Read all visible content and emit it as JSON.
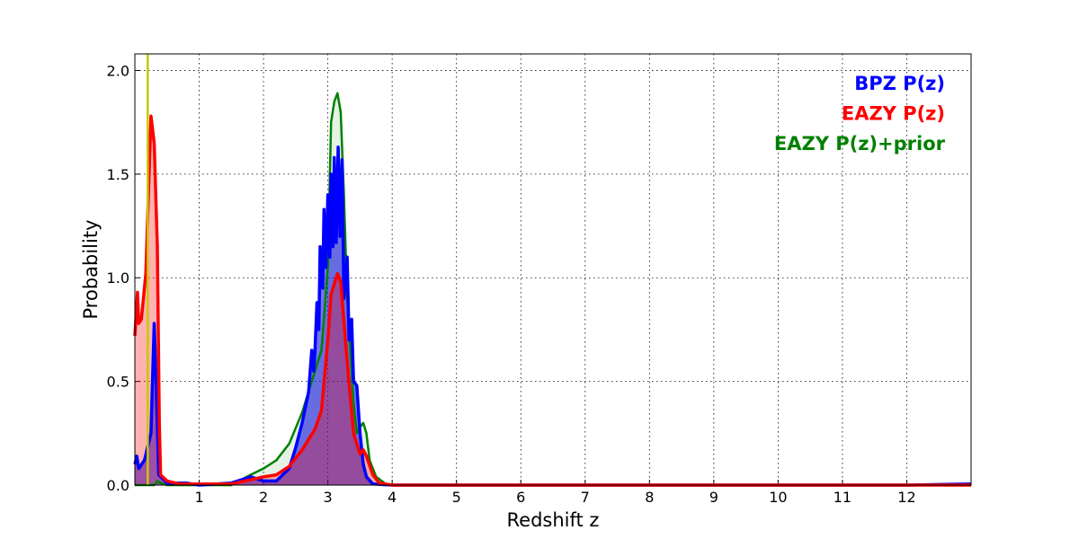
{
  "chart_data": {
    "type": "area",
    "title": "",
    "xlabel": "Redshift z",
    "ylabel": "Probability",
    "xlim": [
      0,
      13
    ],
    "ylim": [
      0,
      2.08
    ],
    "xticks": [
      1,
      2,
      3,
      4,
      5,
      6,
      7,
      8,
      9,
      10,
      11,
      12
    ],
    "xtick_labels": [
      "1",
      "2",
      "3",
      "4",
      "5",
      "6",
      "7",
      "8",
      "9",
      "10",
      "11",
      "12"
    ],
    "yticks": [
      0,
      0.5,
      1.0,
      1.5,
      2.0
    ],
    "ytick_labels": [
      "0.0",
      "0.5",
      "1.0",
      "1.5",
      "2.0"
    ],
    "grid": true,
    "legend_placement": "top-right",
    "vline": {
      "x": 0.2,
      "color": "#c8c800"
    },
    "series": [
      {
        "name": "EAZY P(z)+prior",
        "color": "#008000",
        "fill": "rgba(0,128,0,0.1)",
        "x": [
          0,
          0.3,
          0.35,
          0.4,
          0.5,
          1.5,
          1.8,
          2.0,
          2.2,
          2.4,
          2.6,
          2.8,
          2.9,
          3.0,
          3.05,
          3.1,
          3.15,
          3.2,
          3.25,
          3.3,
          3.4,
          3.45,
          3.5,
          3.55,
          3.6,
          3.65,
          3.75,
          3.9,
          4.1,
          13
        ],
        "y": [
          0,
          0,
          0.02,
          0.01,
          0,
          0,
          0.05,
          0.08,
          0.12,
          0.2,
          0.35,
          0.55,
          0.65,
          1.05,
          1.75,
          1.85,
          1.89,
          1.8,
          1.4,
          0.9,
          0.4,
          0.25,
          0.28,
          0.3,
          0.25,
          0.12,
          0.04,
          0.005,
          0,
          0
        ]
      },
      {
        "name": "BPZ P(z)",
        "color": "#0000ff",
        "fill": "rgba(0,0,220,0.55)",
        "x": [
          0,
          0.03,
          0.06,
          0.15,
          0.25,
          0.3,
          0.33,
          0.37,
          0.5,
          0.8,
          1.0,
          1.5,
          1.8,
          2.0,
          2.2,
          2.4,
          2.5,
          2.6,
          2.7,
          2.75,
          2.78,
          2.8,
          2.83,
          2.86,
          2.88,
          2.92,
          2.94,
          2.97,
          3.0,
          3.03,
          3.05,
          3.08,
          3.1,
          3.13,
          3.16,
          3.19,
          3.22,
          3.25,
          3.3,
          3.33,
          3.37,
          3.4,
          3.45,
          3.5,
          3.55,
          3.6,
          3.7,
          4,
          12,
          13
        ],
        "y": [
          0.1,
          0.14,
          0.08,
          0.12,
          0.25,
          0.78,
          0.5,
          0.05,
          0.01,
          0.01,
          0,
          0.01,
          0.04,
          0.02,
          0.02,
          0.08,
          0.18,
          0.3,
          0.45,
          0.65,
          0.55,
          0.65,
          0.88,
          0.75,
          1.15,
          0.95,
          1.33,
          1.05,
          1.4,
          1.1,
          1.5,
          1.15,
          1.58,
          1.17,
          1.63,
          1.2,
          1.57,
          0.9,
          1.1,
          0.7,
          0.8,
          0.5,
          0.48,
          0.25,
          0.1,
          0.04,
          0.005,
          0,
          0,
          0.005
        ]
      },
      {
        "name": "EAZY P(z)",
        "color": "#ff0000",
        "fill": "rgba(255,0,0,0.3)",
        "x": [
          0,
          0.04,
          0.06,
          0.1,
          0.17,
          0.2,
          0.25,
          0.3,
          0.35,
          0.38,
          0.4,
          0.5,
          0.7,
          1.5,
          2.0,
          2.2,
          2.4,
          2.6,
          2.8,
          2.9,
          3.0,
          3.05,
          3.15,
          3.2,
          3.3,
          3.4,
          3.5,
          3.55,
          3.6,
          3.7,
          3.8,
          4.0,
          13
        ],
        "y": [
          0.72,
          0.93,
          0.78,
          0.8,
          1.02,
          1.3,
          1.78,
          1.65,
          1.15,
          0.3,
          0.05,
          0.02,
          0.005,
          0.005,
          0.04,
          0.05,
          0.09,
          0.17,
          0.27,
          0.36,
          0.7,
          0.92,
          1.02,
          0.98,
          0.6,
          0.25,
          0.15,
          0.17,
          0.14,
          0.05,
          0.01,
          0,
          0
        ]
      }
    ],
    "legend": [
      {
        "label": "BPZ P(z)",
        "color": "#0000ff"
      },
      {
        "label": "EAZY P(z)",
        "color": "#ff0000"
      },
      {
        "label": "EAZY P(z)+prior",
        "color": "#008000"
      }
    ]
  }
}
